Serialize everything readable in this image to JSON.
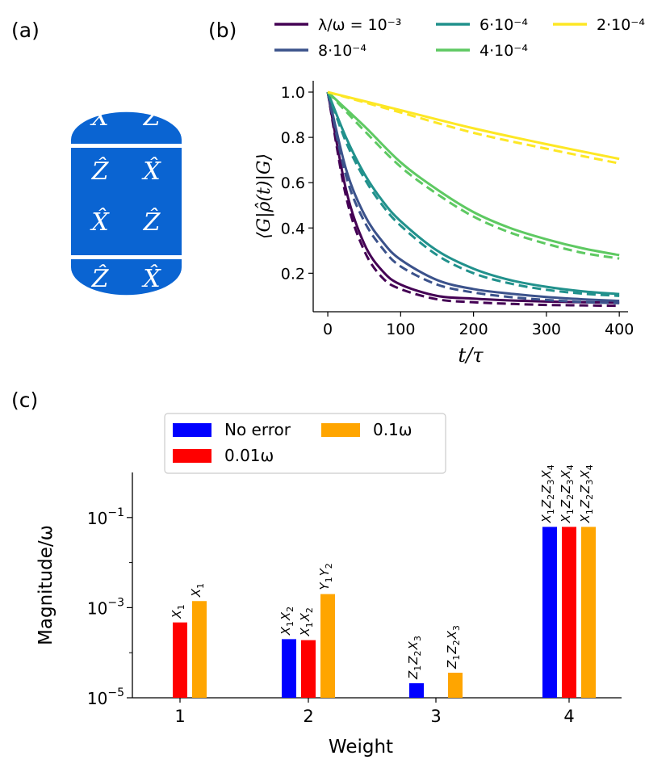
{
  "panels": {
    "a": {
      "label": "(a)",
      "grid": [
        [
          "X̂",
          "Ẑ"
        ],
        [
          "Ẑ",
          "X̂"
        ],
        [
          "X̂",
          "Ẑ"
        ],
        [
          "Ẑ",
          "X̂"
        ]
      ],
      "color": "#0a64d2"
    },
    "b": {
      "label": "(b)"
    },
    "c": {
      "label": "(c)"
    }
  },
  "chart_data": [
    {
      "type": "line",
      "title": "",
      "xlabel": "t/τ",
      "ylabel": "⟨G|ρ̂(t)|G⟩",
      "xlim": [
        -20,
        412
      ],
      "ylim": [
        0.03,
        1.05
      ],
      "xticks": [
        0,
        100,
        200,
        300,
        400
      ],
      "xtick_labels": [
        "0",
        "100",
        "200",
        "300",
        "400"
      ],
      "yticks": [
        0.2,
        0.4,
        0.6,
        0.8,
        1.0
      ],
      "ytick_labels": [
        "0.2",
        "0.4",
        "0.6",
        "0.8",
        "1.0"
      ],
      "legend": "top",
      "series": [
        {
          "name": "λ/ω = 10⁻³",
          "color": "#440154",
          "solid": [
            [
              0,
              1.0
            ],
            [
              25,
              0.57
            ],
            [
              50,
              0.33
            ],
            [
              75,
              0.21
            ],
            [
              100,
              0.15
            ],
            [
              150,
              0.1
            ],
            [
              200,
              0.088
            ],
            [
              250,
              0.08
            ],
            [
              300,
              0.075
            ],
            [
              350,
              0.072
            ],
            [
              400,
              0.07
            ]
          ],
          "dashed": [
            [
              0,
              1.0
            ],
            [
              25,
              0.54
            ],
            [
              50,
              0.3
            ],
            [
              75,
              0.18
            ],
            [
              100,
              0.13
            ],
            [
              150,
              0.085
            ],
            [
              200,
              0.072
            ],
            [
              250,
              0.065
            ],
            [
              300,
              0.06
            ],
            [
              350,
              0.058
            ],
            [
              400,
              0.056
            ]
          ]
        },
        {
          "name": "8·10⁻⁴",
          "color": "#3b528b",
          "solid": [
            [
              0,
              1.0
            ],
            [
              25,
              0.66
            ],
            [
              50,
              0.46
            ],
            [
              75,
              0.34
            ],
            [
              100,
              0.26
            ],
            [
              150,
              0.17
            ],
            [
              200,
              0.13
            ],
            [
              250,
              0.11
            ],
            [
              300,
              0.095
            ],
            [
              350,
              0.085
            ],
            [
              400,
              0.078
            ]
          ],
          "dashed": [
            [
              0,
              1.0
            ],
            [
              25,
              0.63
            ],
            [
              50,
              0.43
            ],
            [
              75,
              0.31
            ],
            [
              100,
              0.23
            ],
            [
              150,
              0.15
            ],
            [
              200,
              0.115
            ],
            [
              250,
              0.095
            ],
            [
              300,
              0.082
            ],
            [
              350,
              0.073
            ],
            [
              400,
              0.068
            ]
          ]
        },
        {
          "name": "6·10⁻⁴",
          "color": "#21918c",
          "solid": [
            [
              0,
              1.0
            ],
            [
              25,
              0.8
            ],
            [
              50,
              0.64
            ],
            [
              75,
              0.52
            ],
            [
              100,
              0.43
            ],
            [
              150,
              0.3
            ],
            [
              200,
              0.22
            ],
            [
              250,
              0.17
            ],
            [
              300,
              0.14
            ],
            [
              350,
              0.12
            ],
            [
              400,
              0.108
            ]
          ],
          "dashed": [
            [
              0,
              1.0
            ],
            [
              25,
              0.78
            ],
            [
              50,
              0.62
            ],
            [
              75,
              0.5
            ],
            [
              100,
              0.41
            ],
            [
              150,
              0.28
            ],
            [
              200,
              0.2
            ],
            [
              250,
              0.155
            ],
            [
              300,
              0.127
            ],
            [
              350,
              0.11
            ],
            [
              400,
              0.1
            ]
          ]
        },
        {
          "name": "4·10⁻⁴",
          "color": "#5ec962",
          "solid": [
            [
              0,
              1.0
            ],
            [
              50,
              0.85
            ],
            [
              100,
              0.69
            ],
            [
              150,
              0.57
            ],
            [
              200,
              0.47
            ],
            [
              250,
              0.4
            ],
            [
              300,
              0.35
            ],
            [
              350,
              0.31
            ],
            [
              400,
              0.28
            ]
          ],
          "dashed": [
            [
              0,
              1.0
            ],
            [
              50,
              0.83
            ],
            [
              100,
              0.67
            ],
            [
              150,
              0.55
            ],
            [
              200,
              0.45
            ],
            [
              250,
              0.38
            ],
            [
              300,
              0.33
            ],
            [
              350,
              0.29
            ],
            [
              400,
              0.265
            ]
          ]
        },
        {
          "name": "2·10⁻⁴",
          "color": "#fde725",
          "solid": [
            [
              0,
              1.0
            ],
            [
              100,
              0.92
            ],
            [
              200,
              0.84
            ],
            [
              300,
              0.77
            ],
            [
              400,
              0.705
            ]
          ],
          "dashed": [
            [
              0,
              1.0
            ],
            [
              100,
              0.91
            ],
            [
              200,
              0.82
            ],
            [
              300,
              0.75
            ],
            [
              400,
              0.685
            ]
          ]
        }
      ]
    },
    {
      "type": "bar",
      "title": "",
      "xlabel": "Weight",
      "ylabel": "Magnitude/ω",
      "yscale": "log",
      "ylim": [
        1e-05,
        1
      ],
      "yticks": [
        1e-05,
        0.001,
        0.1
      ],
      "ytick_labels": [
        "10−5",
        "10−3",
        "10−1"
      ],
      "categories": [
        "1",
        "2",
        "3",
        "4"
      ],
      "legend": "top-left",
      "series": [
        {
          "name": "No error",
          "color": "#0000ff",
          "values": [
            null,
            0.0002,
            2.1e-05,
            0.062
          ],
          "bar_labels": [
            "",
            "X1X2",
            "Z1Z2X3",
            "X1Z2Z3X4"
          ]
        },
        {
          "name": "0.01ω",
          "color": "#ff0000",
          "values": [
            0.00047,
            0.00019,
            null,
            0.062
          ],
          "bar_labels": [
            "X1",
            "X1X2",
            "",
            "X1Z2Z3X4"
          ]
        },
        {
          "name": "0.1ω",
          "color": "#ffa500",
          "values": [
            0.0014,
            0.002,
            3.6e-05,
            0.062
          ],
          "bar_labels": [
            "X1",
            "Y1Y2",
            "Z1Z2X3",
            "X1Z2Z3X4"
          ]
        }
      ]
    }
  ]
}
